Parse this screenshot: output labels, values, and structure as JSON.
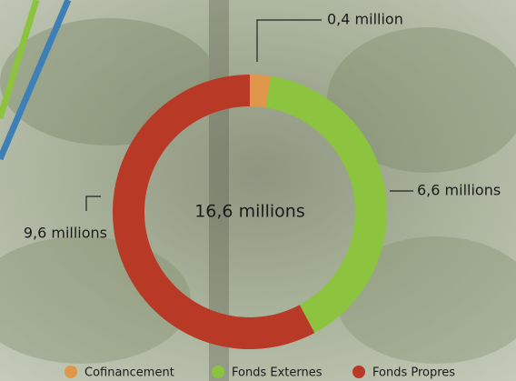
{
  "chart_data": {
    "type": "pie",
    "categories": [
      "Cofinancement",
      "Fonds Externes",
      "Fonds Propres"
    ],
    "values": [
      0.4,
      6.6,
      9.6
    ],
    "value_labels": [
      "0,4 million",
      "6,6 millions",
      "9,6 millions"
    ],
    "colors": [
      "#e0974a",
      "#8cc43f",
      "#b83a26"
    ],
    "center_label": "16,6 millions",
    "legend": "bottom"
  }
}
